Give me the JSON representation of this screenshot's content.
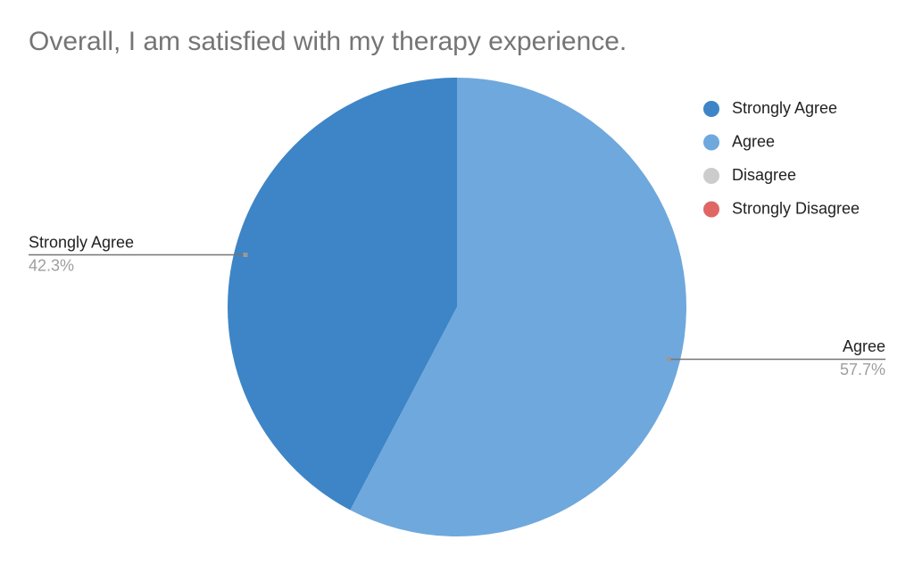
{
  "chart_data": {
    "type": "pie",
    "title": "Overall, I am satisfied with my therapy experience.",
    "categories": [
      "Strongly Agree",
      "Agree",
      "Disagree",
      "Strongly Disagree"
    ],
    "values": [
      42.3,
      57.7,
      0,
      0
    ],
    "value_labels": [
      "42.3%",
      "57.7%",
      null,
      null
    ],
    "colors": [
      "#3d85c6",
      "#6fa8dc",
      "#cccccc",
      "#e06666"
    ],
    "legend": "right"
  }
}
